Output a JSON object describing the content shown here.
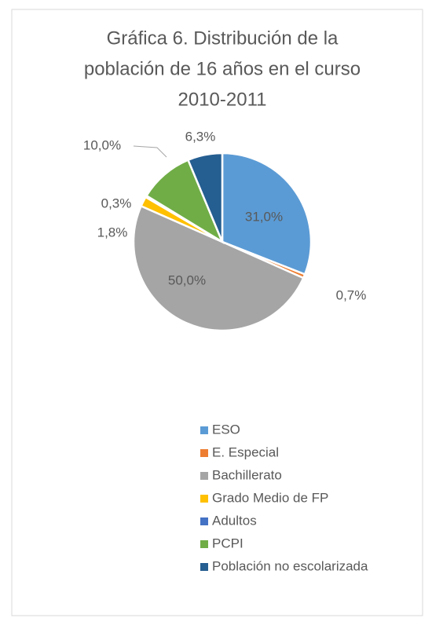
{
  "chart_data": {
    "type": "pie",
    "title": [
      "Gráfica 6. Distribución de la",
      "población de 16 años en el curso",
      "2010-2011"
    ],
    "categories": [
      "ESO",
      "E. Especial",
      "Bachillerato",
      "Grado Medio de FP",
      "Adultos",
      "PCPI",
      "Población no escolarizada"
    ],
    "values": [
      31.0,
      0.7,
      50.0,
      1.8,
      0.3,
      10.0,
      6.3
    ],
    "value_labels": [
      "31,0%",
      "0,7%",
      "50,0%",
      "1,8%",
      "0,3%",
      "10,0%",
      "6,3%"
    ],
    "colors": [
      "#5b9bd5",
      "#ed7d31",
      "#a5a5a5",
      "#ffc000",
      "#4472c4",
      "#70ad47",
      "#255e91"
    ],
    "legend": "bottom"
  }
}
